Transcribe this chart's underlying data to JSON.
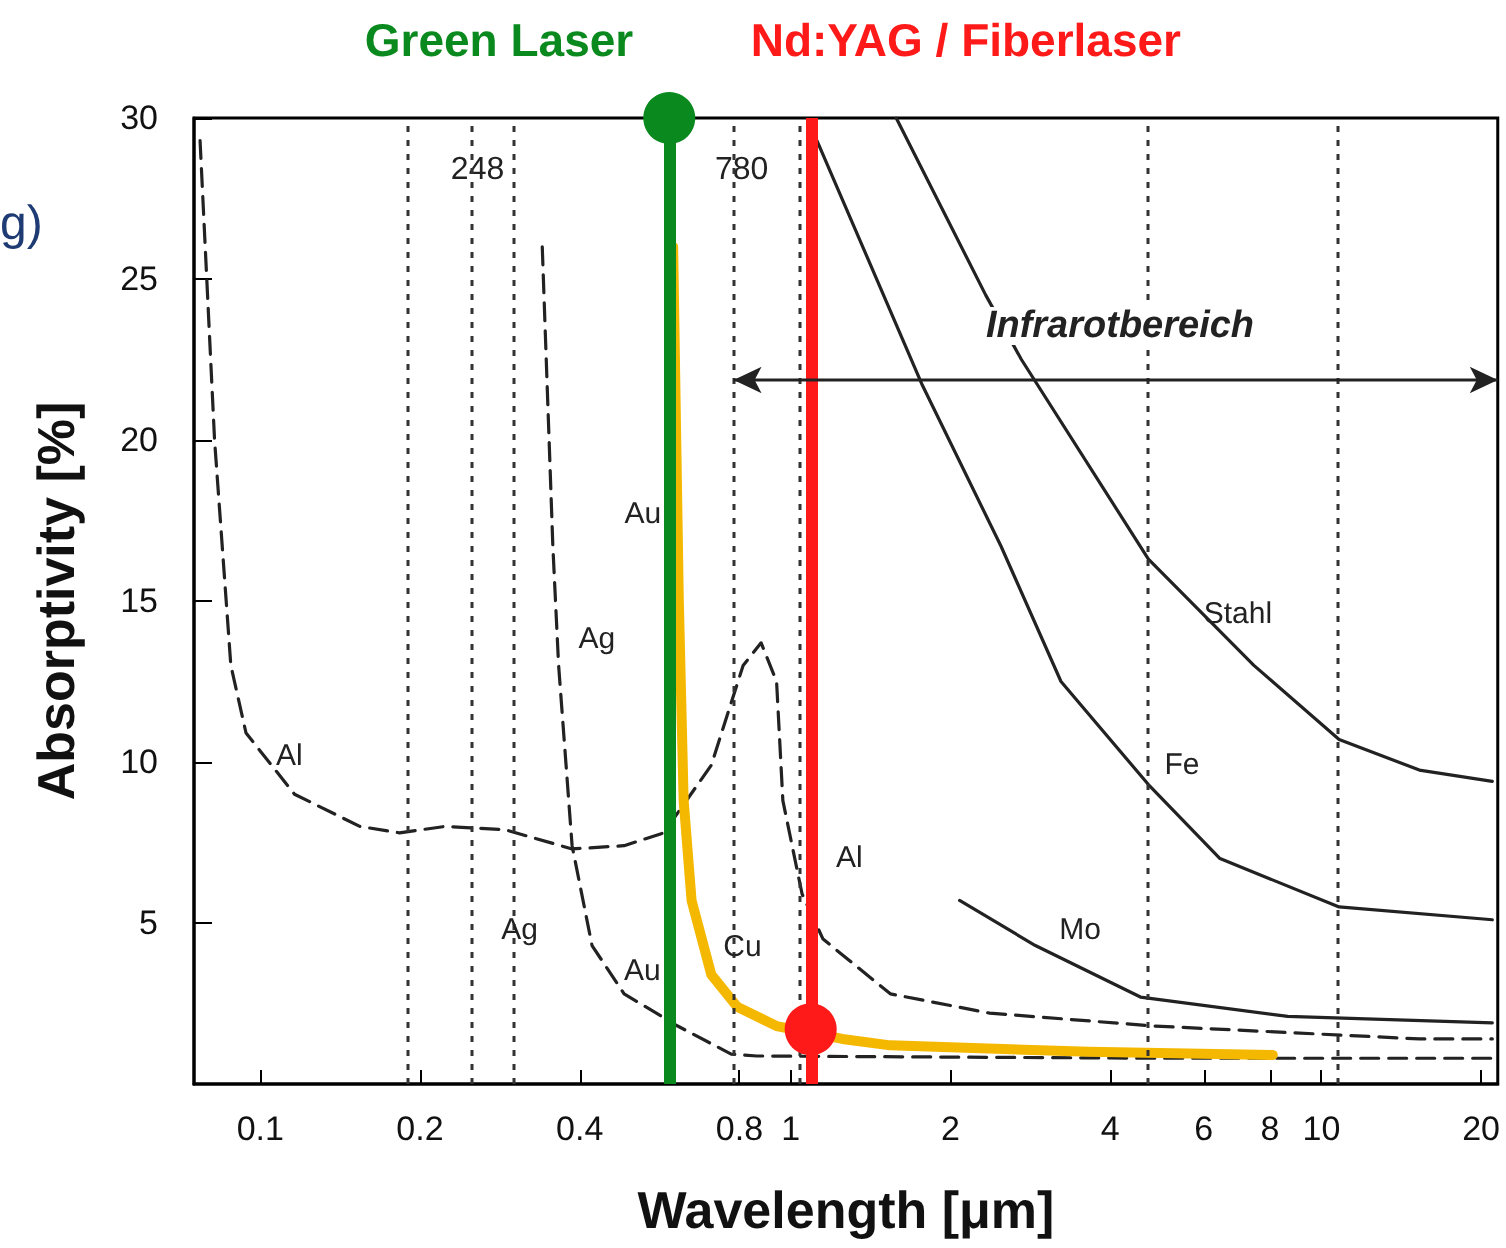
{
  "chart_data": {
    "type": "line",
    "xlabel": "Wavelength [μm]",
    "ylabel": "Absorptivity [%]",
    "log": "x",
    "xlim": [
      0.075,
      21.5
    ],
    "xticks": [
      0.1,
      0.2,
      0.4,
      0.8,
      1,
      2,
      4,
      6,
      8,
      10,
      20
    ],
    "ylim": [
      0,
      30
    ],
    "yticks": [
      5,
      10,
      15,
      20,
      25,
      30
    ],
    "grid": false,
    "marker": "none",
    "series": [
      {
        "color": "#222222",
        "line_style": "dashed",
        "x": [
          0.077,
          0.082,
          0.088,
          0.094,
          0.116,
          0.154,
          0.183,
          0.223,
          0.289,
          0.387,
          0.485,
          0.576,
          0.708,
          0.813,
          0.879,
          0.94,
          0.966,
          1.05,
          1.15,
          1.54,
          2.37,
          4.84,
          15.3,
          21
        ],
        "values": [
          29.3,
          20,
          13,
          10.9,
          9,
          8,
          7.8,
          8,
          7.9,
          7.3,
          7.4,
          7.8,
          9.9,
          13,
          13.7,
          12.5,
          8.8,
          5.9,
          4.5,
          2.8,
          2.2,
          1.8,
          1.4,
          1.4
        ]
      },
      {
        "color": "#222222",
        "line_style": "dashed",
        "x": [
          0.34,
          0.356,
          0.365,
          0.387,
          0.422,
          0.485,
          0.612,
          0.772,
          0.863,
          4.84,
          21
        ],
        "values": [
          26,
          16.7,
          13,
          7.4,
          4.3,
          2.8,
          1.8,
          0.93,
          0.87,
          0.8,
          0.8
        ]
      },
      {
        "color": "#222222",
        "line_style": "solid",
        "x": [
          2.08,
          2.89,
          4.56,
          8.64,
          21
        ],
        "values": [
          5.7,
          4.3,
          2.7,
          2.1,
          1.9
        ]
      },
      {
        "color": "#222222",
        "line_style": "solid",
        "x": [
          1.12,
          1.77,
          2.49,
          3.23,
          4.72,
          6.44,
          10.8,
          21
        ],
        "values": [
          29.3,
          21.7,
          16.7,
          12.5,
          9.3,
          7,
          5.5,
          5.1
        ]
      },
      {
        "color": "#222222",
        "line_style": "solid",
        "x": [
          1.58,
          2.33,
          2.72,
          4.72,
          7.46,
          10.8,
          15.3,
          21
        ],
        "values": [
          30,
          24.5,
          22.5,
          16.3,
          13,
          10.7,
          9.75,
          9.4
        ]
      },
      {
        "color": "#f5b800",
        "line_style": "solid",
        "x": [
          0.6,
          0.615,
          0.628,
          0.65,
          0.708,
          0.792,
          0.94,
          1.25,
          1.54,
          3.65,
          8.1
        ],
        "values": [
          26,
          15,
          8.8,
          5.7,
          3.4,
          2.4,
          1.8,
          1.4,
          1.2,
          1.0,
          0.9
        ]
      },
      {
        "type": "scatter",
        "marker": "circle",
        "color": "#0a8a1e",
        "x": [
          0.59
        ],
        "values": [
          30
        ]
      },
      {
        "type": "scatter",
        "marker": "circle",
        "color": "#ff1a1a",
        "x": [
          1.09
        ],
        "values": [
          1.7
        ]
      }
    ],
    "ref_lines": [
      {
        "axis": "x",
        "value": 0.19,
        "label": null,
        "color": "#333333",
        "line_style": "dotted"
      },
      {
        "axis": "x",
        "value": 0.248,
        "label": "248",
        "color": "#333333",
        "line_style": "dotted"
      },
      {
        "axis": "x",
        "value": 0.3,
        "label": null,
        "color": "#333333",
        "line_style": "dotted"
      },
      {
        "axis": "x",
        "value": 0.78,
        "label": "780",
        "color": "#333333",
        "line_style": "dotted"
      },
      {
        "axis": "x",
        "value": 1.04,
        "label": null,
        "color": "#333333",
        "line_style": "dotted"
      },
      {
        "axis": "x",
        "value": 4.72,
        "label": null,
        "color": "#333333",
        "line_style": "dotted"
      },
      {
        "axis": "x",
        "value": 10.7,
        "label": null,
        "color": "#333333",
        "line_style": "dotted"
      },
      {
        "axis": "x",
        "value": 0.59,
        "label": "Green Laser",
        "color": "#0a8a1e",
        "line_style": "solid"
      },
      {
        "axis": "x",
        "value": 1.09,
        "label": "Nd:YAG / Fiberlaser",
        "color": "#ff1a1a",
        "line_style": "solid"
      }
    ],
    "annotations": [
      "g)",
      "Infrarotbereich",
      {
        "text": "Al",
        "x": 0.107,
        "y": 10.2
      },
      {
        "text": "Al",
        "x": 1.05,
        "y": 5.9
      },
      {
        "text": "Ag",
        "x": 0.365,
        "y": 13
      },
      {
        "text": "Ag",
        "x": 0.422,
        "y": 4.3
      },
      {
        "text": "Au",
        "x": 0.611,
        "y": 17.7
      },
      {
        "text": "Au",
        "x": 0.7,
        "y": 3.5
      },
      {
        "text": "Cu",
        "x": 0.708,
        "y": 3.4
      },
      {
        "text": "Mo",
        "x": 2.89,
        "y": 4.3
      },
      {
        "text": "Fe",
        "x": 4.72,
        "y": 9.3
      },
      {
        "text": "Stahl",
        "x": 6.0,
        "y": 14.6
      }
    ]
  }
}
